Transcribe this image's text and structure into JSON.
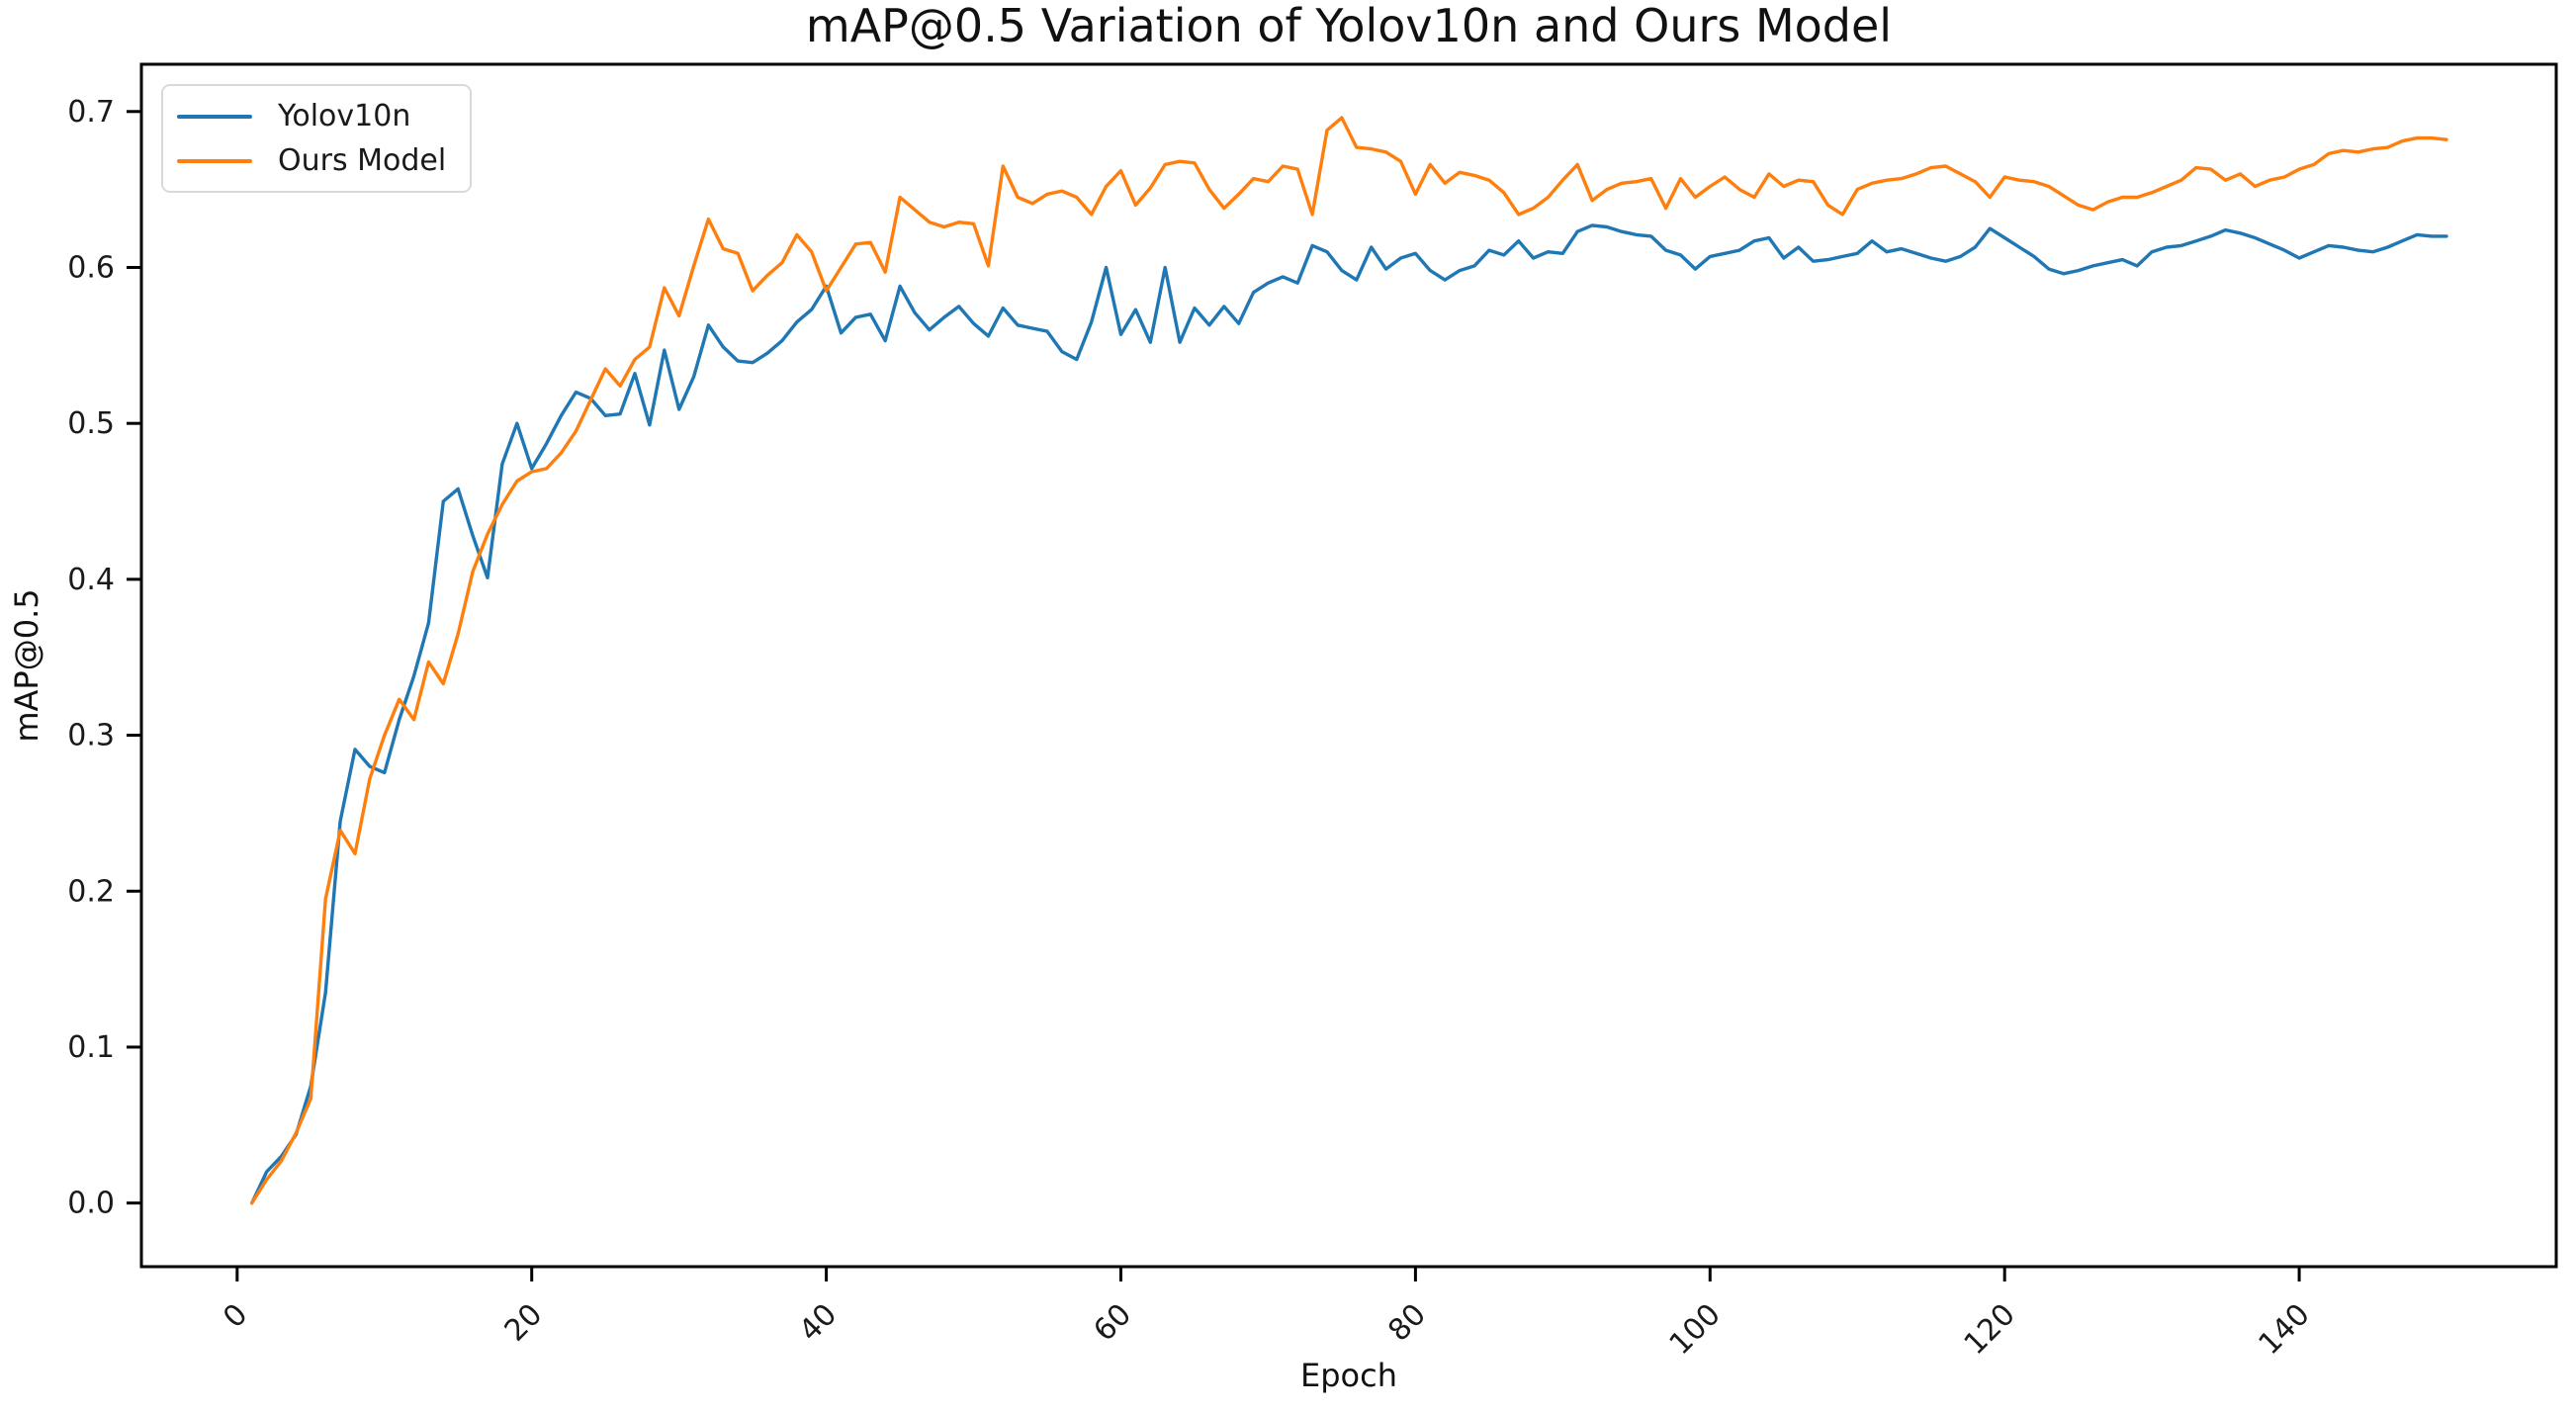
{
  "chart_data": {
    "type": "line",
    "title": "mAP@0.5 Variation of Yolov10n and Ours Model",
    "xlabel": "Epoch",
    "ylabel": "mAP@0.5",
    "x_start": 1,
    "xlim": [
      -6.5,
      157.45
    ],
    "ylim": [
      -0.0408,
      0.7303
    ],
    "xticks": [
      0,
      20,
      40,
      60,
      80,
      100,
      120,
      140
    ],
    "yticks": [
      "0.0",
      "0.1",
      "0.2",
      "0.3",
      "0.4",
      "0.5",
      "0.6",
      "0.7"
    ],
    "grid": false,
    "legend_position": "upper left",
    "axis_color": "#000000",
    "series": [
      {
        "name": "Yolov10n",
        "color": "#1f77b4",
        "values": [
          0.0,
          0.02,
          0.03,
          0.044,
          0.075,
          0.135,
          0.245,
          0.291,
          0.28,
          0.276,
          0.31,
          0.338,
          0.372,
          0.45,
          0.458,
          0.428,
          0.401,
          0.474,
          0.5,
          0.471,
          0.487,
          0.505,
          0.52,
          0.516,
          0.505,
          0.506,
          0.532,
          0.499,
          0.547,
          0.509,
          0.53,
          0.563,
          0.549,
          0.54,
          0.539,
          0.545,
          0.553,
          0.565,
          0.573,
          0.588,
          0.558,
          0.568,
          0.57,
          0.553,
          0.588,
          0.571,
          0.56,
          0.568,
          0.575,
          0.564,
          0.556,
          0.574,
          0.563,
          0.561,
          0.559,
          0.546,
          0.541,
          0.565,
          0.6,
          0.557,
          0.573,
          0.552,
          0.6,
          0.552,
          0.574,
          0.563,
          0.575,
          0.564,
          0.584,
          0.59,
          0.594,
          0.59,
          0.614,
          0.61,
          0.598,
          0.592,
          0.613,
          0.599,
          0.606,
          0.609,
          0.598,
          0.592,
          0.598,
          0.601,
          0.611,
          0.608,
          0.617,
          0.606,
          0.61,
          0.609,
          0.623,
          0.627,
          0.626,
          0.623,
          0.621,
          0.62,
          0.611,
          0.608,
          0.599,
          0.607,
          0.609,
          0.611,
          0.617,
          0.619,
          0.606,
          0.613,
          0.604,
          0.605,
          0.607,
          0.609,
          0.617,
          0.61,
          0.612,
          0.609,
          0.606,
          0.604,
          0.607,
          0.613,
          0.625,
          0.619,
          0.613,
          0.607,
          0.599,
          0.596,
          0.598,
          0.601,
          0.603,
          0.605,
          0.601,
          0.61,
          0.613,
          0.614,
          0.617,
          0.62,
          0.624,
          0.622,
          0.619,
          0.615,
          0.611,
          0.606,
          0.61,
          0.614,
          0.613,
          0.611,
          0.61,
          0.613,
          0.617,
          0.621,
          0.62,
          0.62
        ]
      },
      {
        "name": "Ours Model",
        "color": "#ff7f0e",
        "values": [
          0.0,
          0.015,
          0.027,
          0.045,
          0.067,
          0.195,
          0.239,
          0.224,
          0.272,
          0.3,
          0.323,
          0.31,
          0.347,
          0.333,
          0.365,
          0.405,
          0.429,
          0.448,
          0.463,
          0.469,
          0.471,
          0.481,
          0.495,
          0.515,
          0.535,
          0.524,
          0.541,
          0.549,
          0.587,
          0.569,
          0.601,
          0.631,
          0.612,
          0.609,
          0.585,
          0.595,
          0.603,
          0.621,
          0.61,
          0.585,
          0.6,
          0.615,
          0.616,
          0.597,
          0.645,
          0.637,
          0.629,
          0.626,
          0.629,
          0.628,
          0.601,
          0.665,
          0.645,
          0.641,
          0.647,
          0.649,
          0.645,
          0.634,
          0.652,
          0.662,
          0.64,
          0.651,
          0.666,
          0.668,
          0.667,
          0.65,
          0.638,
          0.647,
          0.657,
          0.655,
          0.665,
          0.663,
          0.634,
          0.688,
          0.696,
          0.677,
          0.676,
          0.674,
          0.668,
          0.647,
          0.666,
          0.654,
          0.661,
          0.659,
          0.656,
          0.648,
          0.634,
          0.638,
          0.645,
          0.656,
          0.666,
          0.643,
          0.65,
          0.654,
          0.655,
          0.657,
          0.638,
          0.657,
          0.645,
          0.652,
          0.658,
          0.65,
          0.645,
          0.66,
          0.652,
          0.656,
          0.655,
          0.64,
          0.634,
          0.65,
          0.654,
          0.656,
          0.657,
          0.66,
          0.664,
          0.665,
          0.66,
          0.655,
          0.645,
          0.658,
          0.656,
          0.655,
          0.652,
          0.646,
          0.64,
          0.637,
          0.642,
          0.645,
          0.645,
          0.648,
          0.652,
          0.656,
          0.664,
          0.663,
          0.656,
          0.66,
          0.652,
          0.656,
          0.658,
          0.663,
          0.666,
          0.673,
          0.675,
          0.674,
          0.676,
          0.677,
          0.681,
          0.683,
          0.683,
          0.682
        ]
      }
    ]
  }
}
